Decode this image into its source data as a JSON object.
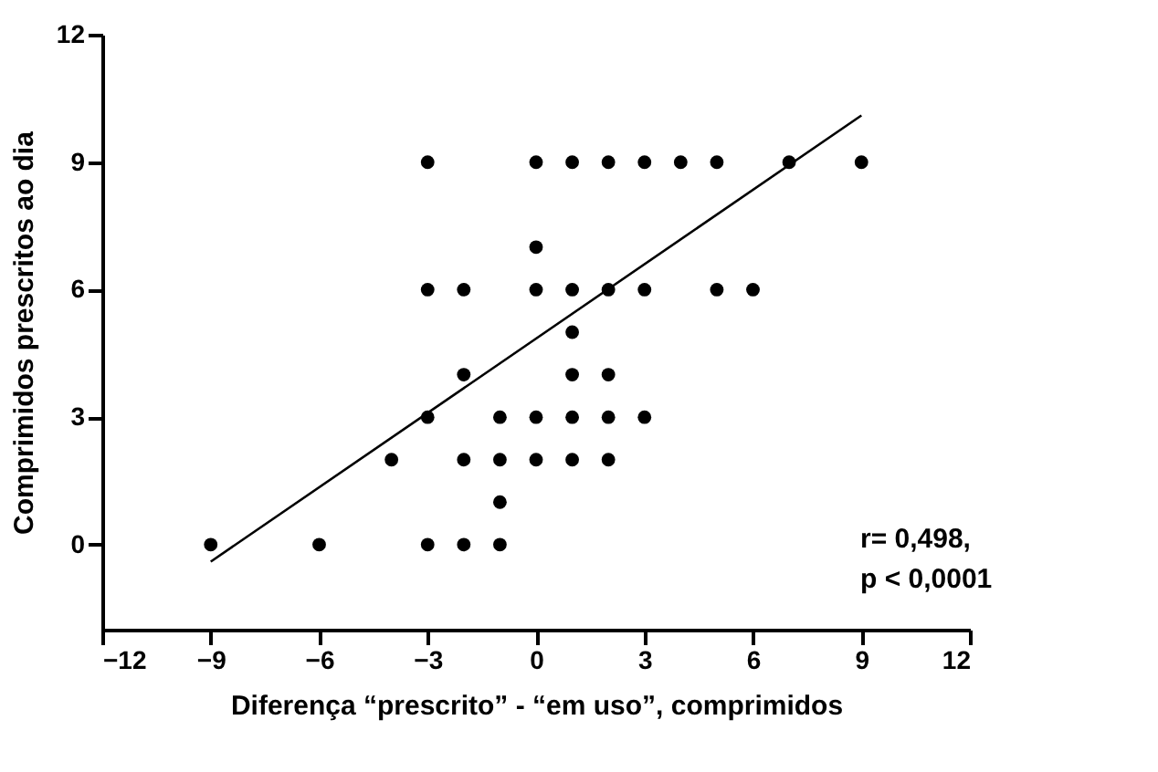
{
  "chart_data": {
    "type": "scatter",
    "xlabel": "Diferença “prescrito” -  “em uso”, comprimidos",
    "ylabel": "Comprimidos prescritos ao dia",
    "xlim": [
      -12,
      12
    ],
    "xticks": [
      -12,
      -9,
      -6,
      -3,
      0,
      3,
      6,
      9,
      12
    ],
    "ylim": [
      -2,
      12
    ],
    "yticks": [
      0,
      3,
      6,
      9,
      12
    ],
    "grid": false,
    "series": [
      {
        "color": "#000000",
        "marker": "circle",
        "x": [
          -3,
          0,
          1,
          2,
          3,
          4,
          5,
          7,
          9,
          0,
          -3,
          -2,
          0,
          1,
          2,
          3,
          5,
          6,
          1,
          -2,
          1,
          2,
          -3,
          -1,
          0,
          1,
          2,
          3,
          -4,
          -2,
          -1,
          0,
          1,
          2,
          -1,
          -9,
          -6,
          -3,
          -2,
          -1
        ],
        "values": [
          9,
          9,
          9,
          9,
          9,
          9,
          9,
          9,
          9,
          7,
          6,
          6,
          6,
          6,
          6,
          6,
          6,
          6,
          5,
          4,
          4,
          4,
          3,
          3,
          3,
          3,
          3,
          3,
          2,
          2,
          2,
          2,
          2,
          2,
          1,
          0,
          0,
          0,
          0,
          0
        ]
      },
      {
        "type": "line",
        "color": "#000000",
        "line_style": "solid",
        "x": [
          -9,
          9
        ],
        "values": [
          -0.4,
          10.1
        ]
      }
    ],
    "annotations": [
      "r= 0,498,",
      "p < 0,0001"
    ]
  }
}
